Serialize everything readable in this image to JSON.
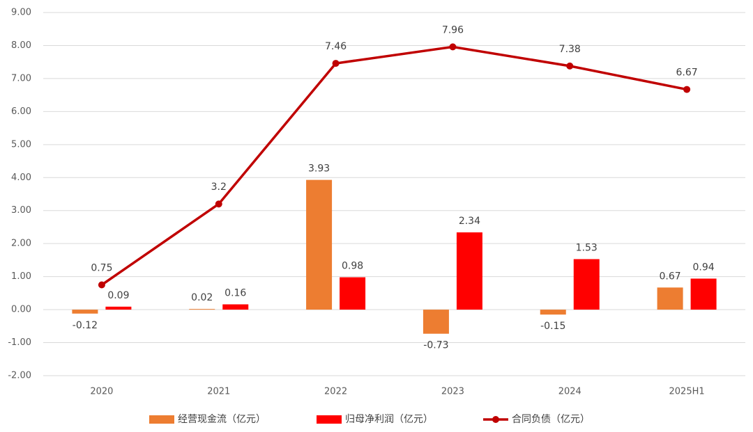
{
  "chart_data": {
    "type": "bar",
    "categories": [
      "2020",
      "2021",
      "2022",
      "2023",
      "2024",
      "2025H1"
    ],
    "series": [
      {
        "name": "经营现金流（亿元）",
        "type": "bar",
        "color": "#ed7d31",
        "values": [
          -0.12,
          0.02,
          3.93,
          -0.73,
          -0.15,
          0.67
        ]
      },
      {
        "name": "归母净利润（亿元）",
        "type": "bar",
        "color": "#ff0000",
        "values": [
          0.09,
          0.16,
          0.98,
          2.34,
          1.53,
          0.94
        ]
      },
      {
        "name": "合同负债（亿元）",
        "type": "line",
        "color": "#c00000",
        "values": [
          0.75,
          3.2,
          7.46,
          7.96,
          7.38,
          6.67
        ]
      }
    ],
    "ylim": [
      -2,
      9
    ],
    "yticks": [
      {
        "value": -2,
        "label": "-2.00"
      },
      {
        "value": -1,
        "label": "-1.00"
      },
      {
        "value": 0,
        "label": "0.00"
      },
      {
        "value": 1,
        "label": "1.00"
      },
      {
        "value": 2,
        "label": "2.00"
      },
      {
        "value": 3,
        "label": "3.00"
      },
      {
        "value": 4,
        "label": "4.00"
      },
      {
        "value": 5,
        "label": "5.00"
      },
      {
        "value": 6,
        "label": "6.00"
      },
      {
        "value": 7,
        "label": "7.00"
      },
      {
        "value": 8,
        "label": "8.00"
      },
      {
        "value": 9,
        "label": "9.00"
      }
    ],
    "grid": true,
    "legend": "bottom"
  }
}
